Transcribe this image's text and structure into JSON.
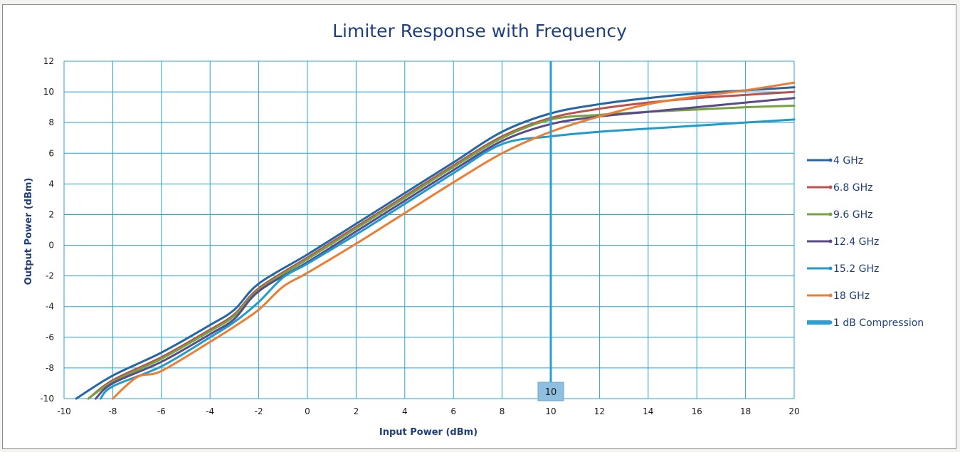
{
  "chart_data": {
    "type": "line",
    "title": "Limiter Response with Frequency",
    "xlabel": "Input Power (dBm)",
    "ylabel": "Output Power (dBm)",
    "xlim": [
      -10,
      20
    ],
    "ylim": [
      -10,
      12
    ],
    "x_ticks": [
      -10,
      -8,
      -6,
      -4,
      -2,
      0,
      2,
      4,
      6,
      8,
      10,
      12,
      14,
      16,
      18,
      20
    ],
    "y_ticks": [
      -10,
      -8,
      -6,
      -4,
      -2,
      0,
      2,
      4,
      6,
      8,
      10,
      12
    ],
    "grid": true,
    "legend_position": "right",
    "series": [
      {
        "name": "4 GHz",
        "color": "#2467a8",
        "x": [
          -9.5,
          -8,
          -6,
          -4,
          -3,
          -2,
          0,
          2,
          4,
          6,
          8,
          10,
          12,
          14,
          16,
          18,
          20
        ],
        "y": [
          -10,
          -8.5,
          -7,
          -5.2,
          -4.2,
          -2.5,
          -0.6,
          1.4,
          3.4,
          5.4,
          7.4,
          8.6,
          9.2,
          9.6,
          9.9,
          10.1,
          10.3
        ]
      },
      {
        "name": "6.8 GHz",
        "color": "#c0504d",
        "x": [
          -9,
          -8,
          -6,
          -4,
          -3,
          -2,
          0,
          2,
          4,
          6,
          8,
          10,
          12,
          14,
          16,
          18,
          20
        ],
        "y": [
          -10,
          -8.8,
          -7.3,
          -5.5,
          -4.5,
          -2.8,
          -0.8,
          1.2,
          3.2,
          5.2,
          7.1,
          8.3,
          8.9,
          9.3,
          9.6,
          9.8,
          10.0
        ]
      },
      {
        "name": "9.6 GHz",
        "color": "#77a33f",
        "x": [
          -9,
          -8,
          -6,
          -4,
          -3,
          -2,
          0,
          2,
          4,
          6,
          8,
          10,
          12,
          14,
          16,
          18,
          20
        ],
        "y": [
          -10,
          -8.9,
          -7.4,
          -5.6,
          -4.6,
          -2.9,
          -0.9,
          1.1,
          3.1,
          5.1,
          7.0,
          8.2,
          8.5,
          8.7,
          8.85,
          9.0,
          9.1
        ]
      },
      {
        "name": "12.4 GHz",
        "color": "#5b4a8b",
        "x": [
          -8.7,
          -8,
          -6,
          -4,
          -3,
          -2,
          0,
          2,
          4,
          6,
          8,
          10,
          12,
          14,
          16,
          18,
          20
        ],
        "y": [
          -10,
          -9.0,
          -7.6,
          -5.8,
          -4.8,
          -3.0,
          -1.1,
          0.9,
          2.9,
          4.9,
          6.8,
          7.9,
          8.4,
          8.7,
          9.0,
          9.3,
          9.6
        ]
      },
      {
        "name": "15.2 GHz",
        "color": "#1f9ccc",
        "x": [
          -8.5,
          -8,
          -6,
          -4,
          -3,
          -2,
          -1,
          0,
          2,
          4,
          6,
          8,
          10,
          12,
          14,
          16,
          18,
          20
        ],
        "y": [
          -10,
          -9.2,
          -7.9,
          -6.0,
          -5.0,
          -3.7,
          -2.1,
          -1.2,
          0.7,
          2.7,
          4.7,
          6.6,
          7.1,
          7.4,
          7.6,
          7.8,
          8.0,
          8.2
        ]
      },
      {
        "name": "18 GHz",
        "color": "#ed7d31",
        "x": [
          -8,
          -7,
          -6,
          -4,
          -3,
          -2,
          -1,
          0,
          2,
          4,
          6,
          8,
          10,
          12,
          14,
          16,
          18,
          20
        ],
        "y": [
          -10,
          -8.6,
          -8.2,
          -6.3,
          -5.3,
          -4.2,
          -2.7,
          -1.8,
          0.1,
          2.1,
          4.1,
          6.0,
          7.4,
          8.4,
          9.2,
          9.7,
          10.1,
          10.6
        ]
      }
    ],
    "compression_marker": {
      "name": "1 dB Compression",
      "color": "#2aa0d2",
      "x": 10,
      "label": "10"
    }
  }
}
